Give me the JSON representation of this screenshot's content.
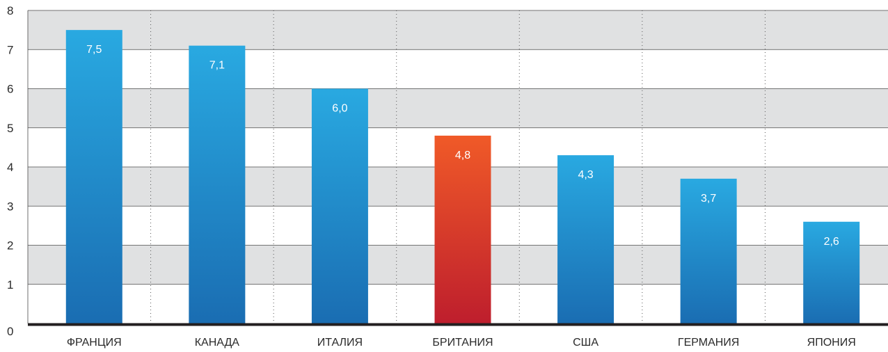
{
  "chart_data": {
    "type": "bar",
    "categories": [
      "ФРАНЦИЯ",
      "КАНАДА",
      "ИТАЛИЯ",
      "БРИТАНИЯ",
      "США",
      "ГЕРМАНИЯ",
      "ЯПОНИЯ"
    ],
    "values": [
      7.5,
      7.1,
      6.0,
      4.8,
      4.3,
      3.7,
      2.6
    ],
    "value_labels": [
      "7,5",
      "7,1",
      "6,0",
      "4,8",
      "4,3",
      "3,7",
      "2,6"
    ],
    "highlight_index": 3,
    "ylim": [
      0,
      8
    ],
    "yticks": [
      "0",
      "1",
      "2",
      "3",
      "4",
      "5",
      "6",
      "7",
      "8"
    ],
    "title": "",
    "xlabel": "",
    "ylabel": "",
    "grid": "alternating horizontal bands, dotted vertical separators",
    "colors": {
      "bar_top": "#29a9e1",
      "bar_bottom": "#1a6db2",
      "highlight_top": "#f05a28",
      "highlight_bottom": "#be1e2d",
      "band": "#e0e1e2",
      "axis": "#231f20"
    }
  }
}
